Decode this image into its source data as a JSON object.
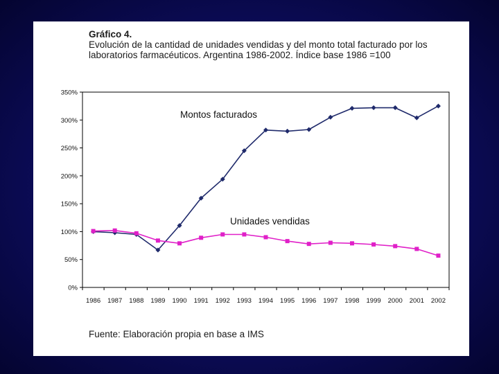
{
  "slide": {
    "heading": "Gráfico 4.",
    "subtitle": "Evolución de la cantidad de unidades vendidas y del monto total facturado por los laboratorios farmacéuticos. Argentina 1986-2002. Índice base 1986 =100",
    "footer": "Fuente: Elaboración propia en base a IMS"
  },
  "colors": {
    "montos": "#1f2a6b",
    "unidades": "#e020c8",
    "axis": "#000000"
  },
  "chart_data": {
    "type": "line",
    "title": "Evolución de la cantidad de unidades vendidas y del monto total facturado por los laboratorios farmacéuticos. Argentina 1986-2002. Índice base 1986 =100",
    "xlabel": "",
    "ylabel": "",
    "ylim": [
      0,
      350
    ],
    "yticks": [
      0,
      50,
      100,
      150,
      200,
      250,
      300,
      350
    ],
    "ytick_labels": [
      "0%",
      "50%",
      "100%",
      "150%",
      "200%",
      "250%",
      "300%",
      "350%"
    ],
    "categories": [
      "1986",
      "1987",
      "1988",
      "1989",
      "1990",
      "1991",
      "1992",
      "1993",
      "1994",
      "1995",
      "1996",
      "1997",
      "1998",
      "1999",
      "2000",
      "2001",
      "2002"
    ],
    "grid": false,
    "series": [
      {
        "name": "Montos facturados",
        "marker": "diamond",
        "values": [
          100,
          98,
          95,
          67,
          111,
          160,
          194,
          245,
          282,
          280,
          283,
          305,
          321,
          322,
          322,
          304,
          325
        ]
      },
      {
        "name": "Unidades vendidas",
        "marker": "square",
        "values": [
          101,
          102,
          97,
          84,
          79,
          89,
          95,
          95,
          90,
          83,
          78,
          80,
          79,
          77,
          74,
          69,
          57
        ]
      }
    ]
  }
}
